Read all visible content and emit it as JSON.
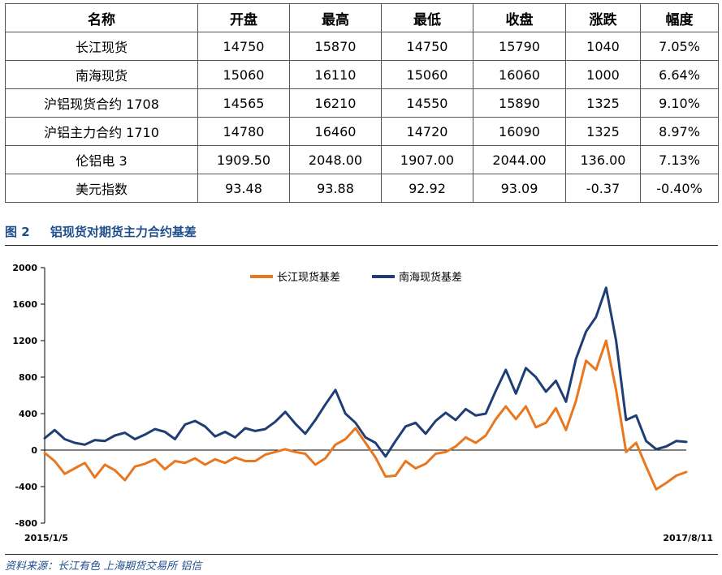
{
  "table": {
    "headers": [
      "名称",
      "开盘",
      "最高",
      "最低",
      "收盘",
      "涨跌",
      "幅度"
    ],
    "rows": [
      [
        "长江现货",
        "14750",
        "15870",
        "14750",
        "15790",
        "1040",
        "7.05%"
      ],
      [
        "南海现货",
        "15060",
        "16110",
        "15060",
        "16060",
        "1000",
        "6.64%"
      ],
      [
        "沪铝现货合约 1708",
        "14565",
        "16210",
        "14550",
        "15890",
        "1325",
        "9.10%"
      ],
      [
        "沪铝主力合约 1710",
        "14780",
        "16460",
        "14720",
        "16090",
        "1325",
        "8.97%"
      ],
      [
        "伦铝电 3",
        "1909.50",
        "2048.00",
        "1907.00",
        "2044.00",
        "136.00",
        "7.13%"
      ],
      [
        "美元指数",
        "93.48",
        "93.88",
        "92.92",
        "93.09",
        "-0.37",
        "-0.40%"
      ]
    ]
  },
  "figure": {
    "number": "图 2",
    "title": "铝现货对期货主力合约基差"
  },
  "source": "资料来源：长江有色   上海期货交易所   铝信",
  "chart_data": {
    "type": "line",
    "x_start_label": "2015/1/5",
    "x_end_label": "2017/8/11",
    "ylim": [
      -800,
      2000
    ],
    "yticks": [
      -800,
      -400,
      0,
      400,
      800,
      1200,
      1600,
      2000
    ],
    "legend_position": "top-center",
    "grid": false,
    "x_index": [
      0,
      10,
      20,
      30,
      40,
      50,
      60,
      70,
      80,
      90,
      100,
      110,
      120,
      130,
      140,
      150,
      160,
      170,
      180,
      190,
      200,
      210,
      220,
      230,
      240,
      250,
      260,
      270,
      280,
      290,
      300,
      310,
      320,
      330,
      340,
      350,
      360,
      370,
      380,
      390,
      400,
      410,
      420,
      430,
      440,
      450,
      460,
      470,
      480,
      490,
      500,
      510,
      520,
      530,
      540,
      550,
      560,
      570,
      580,
      590,
      600,
      610,
      620,
      630,
      640
    ],
    "series": [
      {
        "name": "长江现货基差",
        "color": "#e9771f",
        "values": [
          -30,
          -120,
          -260,
          -200,
          -140,
          -300,
          -160,
          -220,
          -330,
          -180,
          -150,
          -100,
          -210,
          -120,
          -140,
          -90,
          -160,
          -100,
          -140,
          -80,
          -120,
          -120,
          -50,
          -20,
          10,
          -20,
          -40,
          -160,
          -90,
          60,
          120,
          240,
          80,
          -80,
          -290,
          -280,
          -120,
          -200,
          -150,
          -40,
          -20,
          40,
          140,
          80,
          160,
          340,
          480,
          340,
          480,
          250,
          300,
          460,
          220,
          540,
          980,
          880,
          1200,
          660,
          -20,
          80,
          -180,
          -430,
          -360,
          -280,
          -240
        ]
      },
      {
        "name": "南海现货基差",
        "color": "#1f3e73",
        "values": [
          130,
          220,
          120,
          80,
          60,
          110,
          100,
          160,
          190,
          120,
          170,
          230,
          200,
          120,
          280,
          320,
          260,
          150,
          200,
          140,
          240,
          210,
          230,
          310,
          420,
          290,
          180,
          330,
          500,
          660,
          400,
          300,
          140,
          80,
          -70,
          100,
          260,
          300,
          180,
          320,
          410,
          330,
          450,
          380,
          400,
          650,
          880,
          620,
          900,
          800,
          640,
          760,
          530,
          1000,
          1300,
          1460,
          1780,
          1200,
          330,
          380,
          100,
          10,
          40,
          100,
          90
        ]
      }
    ]
  }
}
